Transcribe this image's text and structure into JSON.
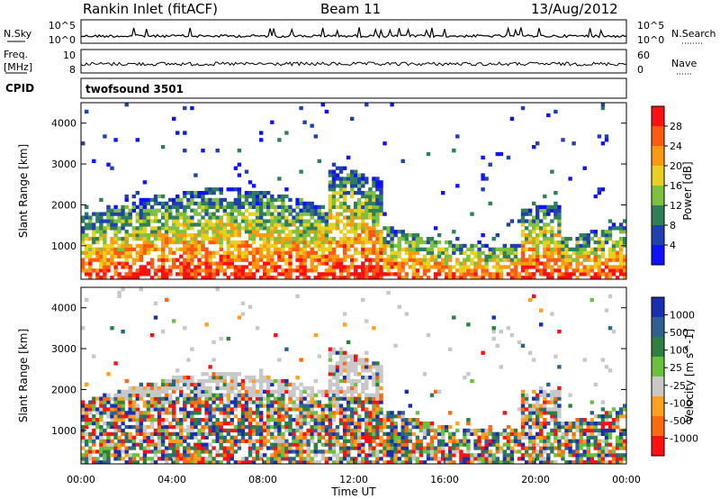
{
  "header": {
    "site": "Rankin Inlet (fitACF)",
    "beam": "Beam 11",
    "date": "13/Aug/2012"
  },
  "colors": {
    "background": "#ffffff",
    "axis": "#000000",
    "power_scale": [
      "#1010ff",
      "#2040b0",
      "#2e7f5a",
      "#7fc040",
      "#e6d020",
      "#ff9a10",
      "#ff5a10",
      "#ff1010"
    ],
    "velocity_scale": [
      "#1830b0",
      "#2e6090",
      "#2e8040",
      "#6cc040",
      "#c8c8c8",
      "#ffa020",
      "#ff6a10",
      "#ff1010"
    ]
  },
  "chart_data": [
    {
      "id": "noise-panel",
      "type": "line",
      "left_label": "N.Sky",
      "right_label": "N.Search",
      "left_ticks": [
        "10^5",
        "10^0"
      ],
      "right_ticks": [
        "10^5",
        "10^0"
      ],
      "series": [
        {
          "name": "N.Search",
          "style": "dotted"
        }
      ]
    },
    {
      "id": "freq-panel",
      "type": "line",
      "left_label_1": "Freq.",
      "left_label_2": "[MHz]",
      "right_label": "Nave",
      "left_ticks": [
        10,
        8
      ],
      "right_ticks": [
        60,
        0
      ],
      "series": [
        {
          "name": "Nave",
          "style": "dotted"
        }
      ]
    },
    {
      "id": "cpid-panel",
      "type": "table",
      "label": "CPID",
      "value": "twofsound 3501"
    },
    {
      "id": "power-panel",
      "type": "heatmap",
      "ylabel": "Slant Range [km]",
      "y_ticks": [
        1000,
        2000,
        3000,
        4000
      ],
      "ylim": [
        180,
        4500
      ],
      "xlim_hours": [
        0,
        24
      ],
      "colorbar": {
        "label": "Power [dB]",
        "ticks": [
          4,
          8,
          12,
          16,
          20,
          24,
          28
        ],
        "range": [
          0,
          32
        ]
      }
    },
    {
      "id": "velocity-panel",
      "type": "heatmap",
      "ylabel": "Slant Range [km]",
      "y_ticks": [
        1000,
        2000,
        3000,
        4000
      ],
      "ylim": [
        180,
        4500
      ],
      "xlim_hours": [
        0,
        24
      ],
      "xlabel": "Time UT",
      "x_ticks": [
        "00:00",
        "04:00",
        "08:00",
        "12:00",
        "16:00",
        "20:00",
        "00:00"
      ],
      "colorbar": {
        "label": "Velocity [m s^-1]",
        "ticks": [
          1000,
          500,
          100,
          25,
          -25,
          -100,
          -500,
          -1000
        ]
      }
    }
  ]
}
